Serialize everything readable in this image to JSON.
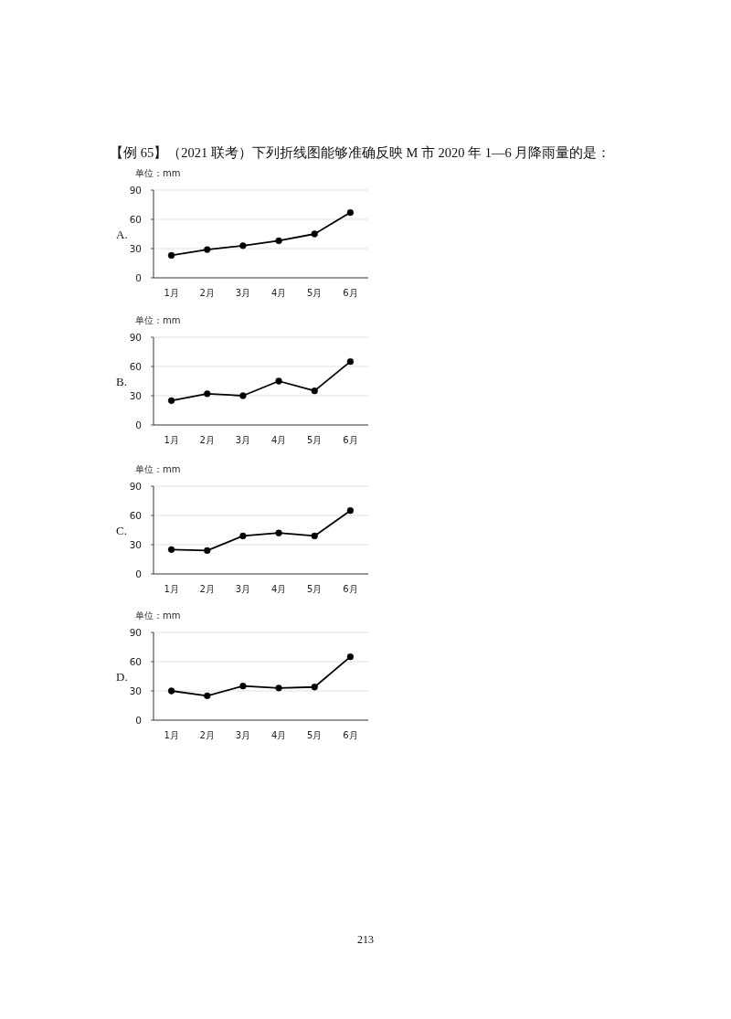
{
  "chart_data": [
    {
      "type": "line",
      "title": "【例 65】（2021 联考）下列折线图能够准确反映 M 市 2020 年 1—6 月降雨量的是：",
      "ylabel": "单位：mm",
      "annotations": [
        "A."
      ],
      "categories": [
        "1月",
        "2月",
        "3月",
        "4月",
        "5月",
        "6月"
      ],
      "series": [
        {
          "color": "#000000",
          "values": [
            23,
            29,
            33,
            38,
            45,
            67
          ]
        }
      ],
      "ylim": [
        0,
        90
      ],
      "yticks": [
        0,
        30,
        60,
        90
      ],
      "grid": "y",
      "marker": "circle",
      "line_style": "solid"
    },
    {
      "type": "line",
      "ylabel": "单位：mm",
      "annotations": [
        "B."
      ],
      "categories": [
        "1月",
        "2月",
        "3月",
        "4月",
        "5月",
        "6月"
      ],
      "series": [
        {
          "color": "#000000",
          "values": [
            25,
            32,
            30,
            45,
            35,
            65
          ]
        }
      ],
      "ylim": [
        0,
        90
      ],
      "yticks": [
        0,
        30,
        60,
        90
      ],
      "grid": "y",
      "marker": "circle",
      "line_style": "solid"
    },
    {
      "type": "line",
      "ylabel": "单位：mm",
      "annotations": [
        "C."
      ],
      "categories": [
        "1月",
        "2月",
        "3月",
        "4月",
        "5月",
        "6月"
      ],
      "series": [
        {
          "color": "#000000",
          "values": [
            25,
            24,
            39,
            42,
            39,
            65
          ]
        }
      ],
      "ylim": [
        0,
        90
      ],
      "yticks": [
        0,
        30,
        60,
        90
      ],
      "grid": "y",
      "marker": "circle",
      "line_style": "solid"
    },
    {
      "type": "line",
      "ylabel": "单位：mm",
      "annotations": [
        "D.",
        "213"
      ],
      "categories": [
        "1月",
        "2月",
        "3月",
        "4月",
        "5月",
        "6月"
      ],
      "series": [
        {
          "color": "#000000",
          "values": [
            30,
            25,
            35,
            33,
            34,
            65
          ]
        }
      ],
      "ylim": [
        0,
        90
      ],
      "yticks": [
        0,
        30,
        60,
        90
      ],
      "grid": "y",
      "marker": "circle",
      "line_style": "solid"
    }
  ]
}
